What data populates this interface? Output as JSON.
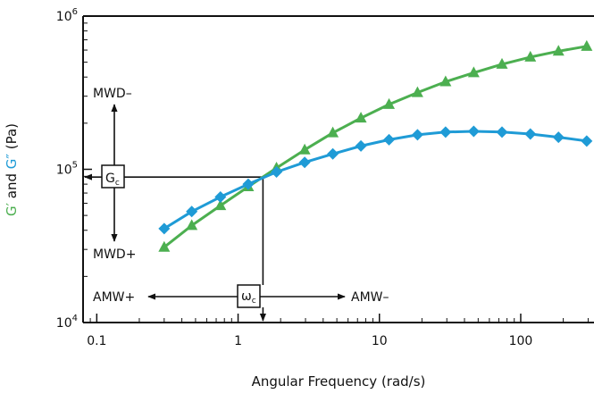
{
  "chart_data": {
    "type": "line",
    "xlabel": "Angular Frequency (rad/s)",
    "ylabel_parts": [
      {
        "text": "G′",
        "color": "#4caf50"
      },
      {
        "text": " and ",
        "color": "#111111"
      },
      {
        "text": "G″",
        "color": "#1f9bd6"
      },
      {
        "text": " (Pa)",
        "color": "#111111"
      }
    ],
    "x_scale": "log",
    "y_scale": "log",
    "xlim": [
      0.08,
      330
    ],
    "ylim": [
      10000,
      1000000
    ],
    "x_ticks": [
      {
        "value": 0.1,
        "label": "0.1"
      },
      {
        "value": 1,
        "label": "1"
      },
      {
        "value": 10,
        "label": "10"
      },
      {
        "value": 100,
        "label": "100"
      }
    ],
    "y_ticks": [
      {
        "value": 10000,
        "base": "10",
        "exp": "4"
      },
      {
        "value": 100000,
        "base": "10",
        "exp": "5"
      },
      {
        "value": 1000000,
        "base": "10",
        "exp": "6"
      }
    ],
    "series": [
      {
        "key": "g-prime",
        "marker": "triangle",
        "color": "#4caf50",
        "x": [
          0.3,
          0.47,
          0.75,
          1.18,
          1.87,
          2.96,
          4.68,
          7.4,
          11.7,
          18.6,
          29.4,
          46.5,
          73.7,
          117,
          185,
          293
        ],
        "y": [
          31000,
          43000,
          58000,
          77000,
          102000,
          134000,
          173000,
          216000,
          265000,
          317000,
          373000,
          427000,
          485000,
          540000,
          590000,
          635000
        ]
      },
      {
        "key": "g-double-prime",
        "marker": "diamond",
        "color": "#1f9bd6",
        "x": [
          0.3,
          0.47,
          0.75,
          1.18,
          1.87,
          2.96,
          4.68,
          7.4,
          11.7,
          18.6,
          29.4,
          46.5,
          73.7,
          117,
          185,
          293
        ],
        "y": [
          41000,
          53000,
          66000,
          80000,
          96000,
          111000,
          126000,
          142000,
          156000,
          168000,
          175000,
          177000,
          175000,
          170000,
          162000,
          153000
        ]
      }
    ],
    "crossover": {
      "x": 1.5,
      "y": 89000
    },
    "annotations": {
      "gc_symbol": "G",
      "gc_sub": "c",
      "wc_symbol": "ω",
      "wc_sub": "c",
      "mwd_minus": "MWD–",
      "mwd_plus": "MWD+",
      "amw_plus": "AMW+",
      "amw_minus": "AMW–"
    }
  }
}
